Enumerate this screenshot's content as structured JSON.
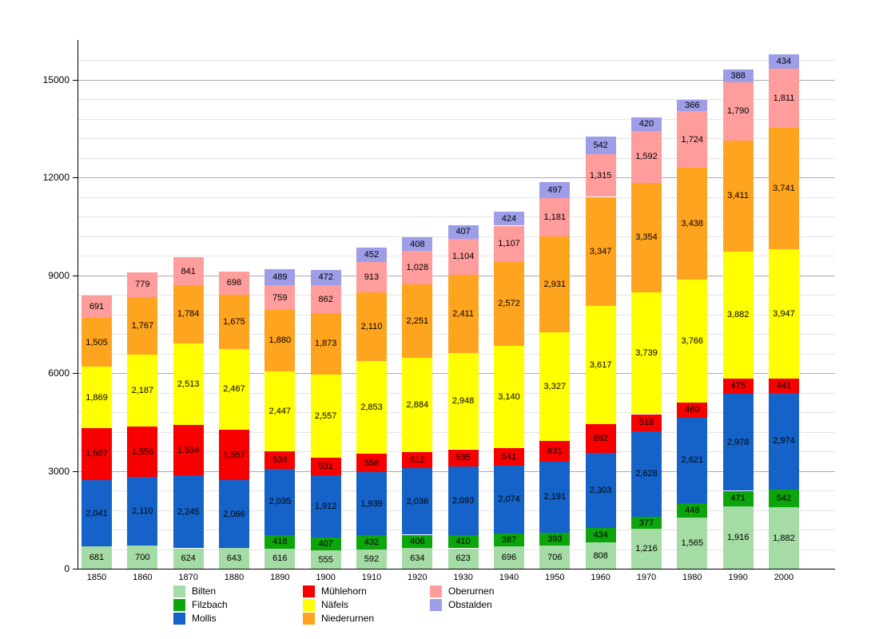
{
  "chart_data": {
    "type": "bar",
    "stacked": true,
    "title": "",
    "xlabel": "",
    "ylabel": "",
    "categories": [
      "1850",
      "1860",
      "1870",
      "1880",
      "1890",
      "1900",
      "1910",
      "1920",
      "1930",
      "1940",
      "1950",
      "1960",
      "1970",
      "1980",
      "1990",
      "2000"
    ],
    "series": [
      {
        "name": "Bilten",
        "color": "#a5dba5",
        "values": [
          681,
          700,
          624,
          643,
          616,
          555,
          592,
          634,
          623,
          696,
          706,
          808,
          1216,
          1565,
          1916,
          1882
        ]
      },
      {
        "name": "Filzbach",
        "color": "#0ca50c",
        "values": [
          null,
          null,
          null,
          null,
          418,
          407,
          432,
          406,
          410,
          387,
          393,
          434,
          377,
          448,
          471,
          542
        ]
      },
      {
        "name": "Mollis",
        "color": "#1563c8",
        "values": [
          2041,
          2110,
          2245,
          2066,
          2035,
          1912,
          1939,
          2036,
          2093,
          2074,
          2191,
          2303,
          2628,
          2621,
          2978,
          2974
        ]
      },
      {
        "name": "Mühlehorn",
        "color": "#f90000",
        "values": [
          1597,
          1556,
          1534,
          1557,
          538,
          531,
          558,
          512,
          535,
          541,
          631,
          892,
          518,
          460,
          475,
          441
        ]
      },
      {
        "name": "Näfels",
        "color": "#ffff00",
        "values": [
          1869,
          2187,
          2513,
          2467,
          2447,
          2557,
          2853,
          2884,
          2948,
          3140,
          3327,
          3617,
          3739,
          3766,
          3882,
          3947
        ]
      },
      {
        "name": "Niederurnen",
        "color": "#ffa41e",
        "values": [
          1505,
          1767,
          1784,
          1675,
          1880,
          1873,
          2110,
          2251,
          2411,
          2572,
          2931,
          3347,
          3354,
          3438,
          3411,
          3741
        ]
      },
      {
        "name": "Oberurnen",
        "color": "#ff9d9d",
        "values": [
          691,
          779,
          841,
          698,
          759,
          862,
          913,
          1028,
          1104,
          1107,
          1181,
          1315,
          1592,
          1724,
          1790,
          1811
        ]
      },
      {
        "name": "Obstalden",
        "color": "#9d9de8",
        "values": [
          null,
          null,
          null,
          null,
          489,
          472,
          452,
          408,
          407,
          424,
          497,
          542,
          420,
          366,
          388,
          434
        ]
      }
    ],
    "ylim": [
      0,
      16090
    ],
    "yticks": [
      0,
      3000,
      6000,
      9000,
      12000,
      15000
    ],
    "minor_grid_step": 600,
    "grid": true,
    "legend_position": "bottom",
    "legend_columns": [
      [
        "Bilten",
        "Filzbach",
        "Mollis"
      ],
      [
        "Mühlehorn",
        "Näfels",
        "Niederurnen"
      ],
      [
        "Oberurnen",
        "Obstalden"
      ]
    ]
  },
  "colors": {
    "background": "#ffffff",
    "axis": "#000000",
    "grid_major": "#ababab",
    "grid_minor": "#e4e4e4",
    "label_text": "#000000"
  }
}
